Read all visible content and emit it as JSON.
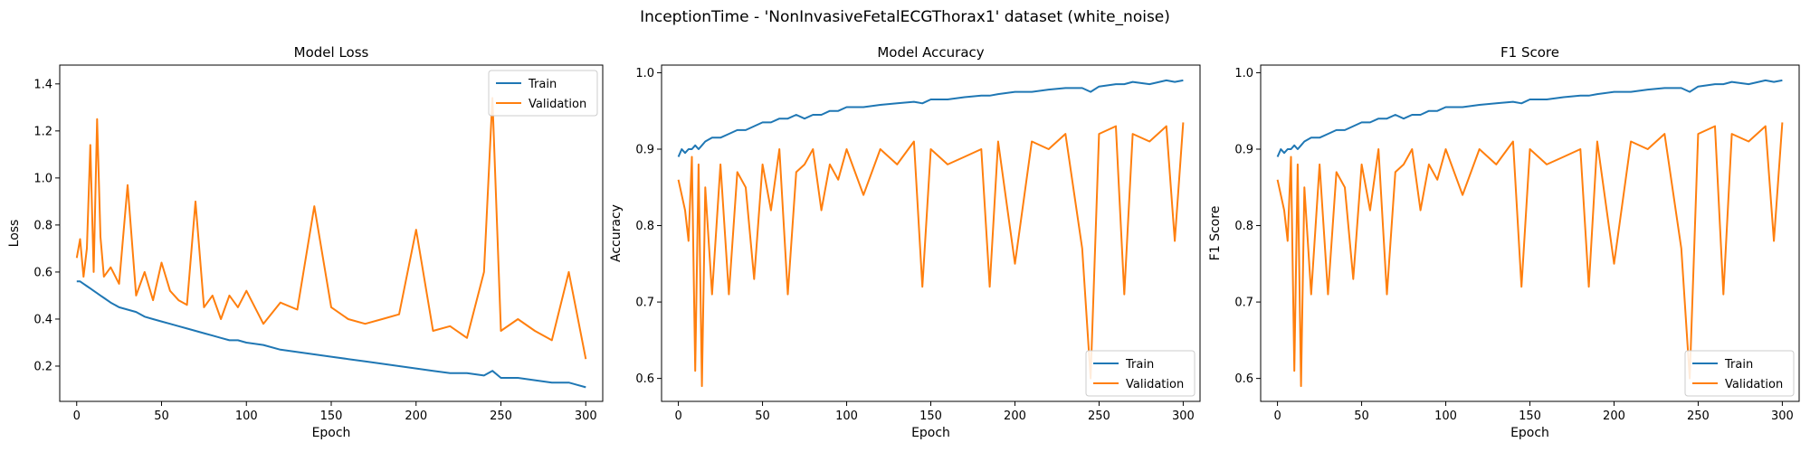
{
  "figure": {
    "suptitle": "InceptionTime - 'NonInvasiveFetalECGThorax1' dataset (white_noise)"
  },
  "colors": {
    "train": "#1f77b4",
    "validation": "#ff7f0e"
  },
  "chart_data": [
    {
      "type": "line",
      "title": "Model Loss",
      "xlabel": "Epoch",
      "ylabel": "Loss",
      "xlim": [
        -10,
        310
      ],
      "ylim": [
        0.05,
        1.48
      ],
      "xticks": [
        0,
        50,
        100,
        150,
        200,
        250,
        300
      ],
      "yticks": [
        0.2,
        0.4,
        0.6,
        0.8,
        1.0,
        1.2,
        1.4
      ],
      "ytick_labels": [
        "0.2",
        "0.4",
        "0.6",
        "0.8",
        "1.0",
        "1.2",
        "1.4"
      ],
      "legend": "upper right",
      "x": [
        0,
        2,
        4,
        6,
        8,
        10,
        12,
        14,
        16,
        20,
        25,
        30,
        35,
        40,
        45,
        50,
        55,
        60,
        65,
        70,
        75,
        80,
        85,
        90,
        95,
        100,
        110,
        120,
        130,
        140,
        150,
        160,
        170,
        180,
        190,
        200,
        210,
        220,
        230,
        240,
        245,
        250,
        260,
        270,
        280,
        290,
        300
      ],
      "series": [
        {
          "name": "Train",
          "values": [
            0.56,
            0.56,
            0.55,
            0.54,
            0.53,
            0.52,
            0.51,
            0.5,
            0.49,
            0.47,
            0.45,
            0.44,
            0.43,
            0.41,
            0.4,
            0.39,
            0.38,
            0.37,
            0.36,
            0.35,
            0.34,
            0.33,
            0.32,
            0.31,
            0.31,
            0.3,
            0.29,
            0.27,
            0.26,
            0.25,
            0.24,
            0.23,
            0.22,
            0.21,
            0.2,
            0.19,
            0.18,
            0.17,
            0.17,
            0.16,
            0.18,
            0.15,
            0.15,
            0.14,
            0.13,
            0.13,
            0.11
          ]
        },
        {
          "name": "Validation",
          "values": [
            0.66,
            0.74,
            0.58,
            0.7,
            1.14,
            0.6,
            1.25,
            0.75,
            0.58,
            0.62,
            0.55,
            0.97,
            0.5,
            0.6,
            0.48,
            0.64,
            0.52,
            0.48,
            0.46,
            0.9,
            0.45,
            0.5,
            0.4,
            0.5,
            0.45,
            0.52,
            0.38,
            0.47,
            0.44,
            0.88,
            0.45,
            0.4,
            0.38,
            0.4,
            0.42,
            0.78,
            0.35,
            0.37,
            0.32,
            0.6,
            1.34,
            0.35,
            0.4,
            0.35,
            0.31,
            0.6,
            0.23
          ]
        }
      ]
    },
    {
      "type": "line",
      "title": "Model Accuracy",
      "xlabel": "Epoch",
      "ylabel": "Accuracy",
      "xlim": [
        -10,
        310
      ],
      "ylim": [
        0.57,
        1.01
      ],
      "xticks": [
        0,
        50,
        100,
        150,
        200,
        250,
        300
      ],
      "yticks": [
        0.6,
        0.7,
        0.8,
        0.9,
        1.0
      ],
      "ytick_labels": [
        "0.6",
        "0.7",
        "0.8",
        "0.9",
        "1.0"
      ],
      "legend": "lower right",
      "x": [
        0,
        2,
        4,
        6,
        8,
        10,
        12,
        14,
        16,
        20,
        25,
        30,
        35,
        40,
        45,
        50,
        55,
        60,
        65,
        70,
        75,
        80,
        85,
        90,
        95,
        100,
        110,
        120,
        130,
        140,
        145,
        150,
        160,
        170,
        180,
        185,
        190,
        200,
        210,
        220,
        230,
        240,
        245,
        250,
        260,
        265,
        270,
        280,
        290,
        295,
        300
      ],
      "series": [
        {
          "name": "Train",
          "values": [
            0.89,
            0.9,
            0.895,
            0.9,
            0.9,
            0.905,
            0.9,
            0.905,
            0.91,
            0.915,
            0.915,
            0.92,
            0.925,
            0.925,
            0.93,
            0.935,
            0.935,
            0.94,
            0.94,
            0.945,
            0.94,
            0.945,
            0.945,
            0.95,
            0.95,
            0.955,
            0.955,
            0.958,
            0.96,
            0.962,
            0.96,
            0.965,
            0.965,
            0.968,
            0.97,
            0.97,
            0.972,
            0.975,
            0.975,
            0.978,
            0.98,
            0.98,
            0.975,
            0.982,
            0.985,
            0.985,
            0.988,
            0.985,
            0.99,
            0.988,
            0.99
          ]
        },
        {
          "name": "Validation",
          "values": [
            0.86,
            0.84,
            0.82,
            0.78,
            0.89,
            0.61,
            0.88,
            0.59,
            0.85,
            0.71,
            0.88,
            0.71,
            0.87,
            0.85,
            0.73,
            0.88,
            0.82,
            0.9,
            0.71,
            0.87,
            0.88,
            0.9,
            0.82,
            0.88,
            0.86,
            0.9,
            0.84,
            0.9,
            0.88,
            0.91,
            0.72,
            0.9,
            0.88,
            0.89,
            0.9,
            0.72,
            0.91,
            0.75,
            0.91,
            0.9,
            0.92,
            0.77,
            0.6,
            0.92,
            0.93,
            0.71,
            0.92,
            0.91,
            0.93,
            0.78,
            0.935
          ]
        }
      ]
    },
    {
      "type": "line",
      "title": "F1 Score",
      "xlabel": "Epoch",
      "ylabel": "F1 Score",
      "xlim": [
        -10,
        310
      ],
      "ylim": [
        0.57,
        1.01
      ],
      "xticks": [
        0,
        50,
        100,
        150,
        200,
        250,
        300
      ],
      "yticks": [
        0.6,
        0.7,
        0.8,
        0.9,
        1.0
      ],
      "ytick_labels": [
        "0.6",
        "0.7",
        "0.8",
        "0.9",
        "1.0"
      ],
      "legend": "lower right",
      "x": [
        0,
        2,
        4,
        6,
        8,
        10,
        12,
        14,
        16,
        20,
        25,
        30,
        35,
        40,
        45,
        50,
        55,
        60,
        65,
        70,
        75,
        80,
        85,
        90,
        95,
        100,
        110,
        120,
        130,
        140,
        145,
        150,
        160,
        170,
        180,
        185,
        190,
        200,
        210,
        220,
        230,
        240,
        245,
        250,
        260,
        265,
        270,
        280,
        290,
        295,
        300
      ],
      "series": [
        {
          "name": "Train",
          "values": [
            0.89,
            0.9,
            0.895,
            0.9,
            0.9,
            0.905,
            0.9,
            0.905,
            0.91,
            0.915,
            0.915,
            0.92,
            0.925,
            0.925,
            0.93,
            0.935,
            0.935,
            0.94,
            0.94,
            0.945,
            0.94,
            0.945,
            0.945,
            0.95,
            0.95,
            0.955,
            0.955,
            0.958,
            0.96,
            0.962,
            0.96,
            0.965,
            0.965,
            0.968,
            0.97,
            0.97,
            0.972,
            0.975,
            0.975,
            0.978,
            0.98,
            0.98,
            0.975,
            0.982,
            0.985,
            0.985,
            0.988,
            0.985,
            0.99,
            0.988,
            0.99
          ]
        },
        {
          "name": "Validation",
          "values": [
            0.86,
            0.84,
            0.82,
            0.78,
            0.89,
            0.61,
            0.88,
            0.59,
            0.85,
            0.71,
            0.88,
            0.71,
            0.87,
            0.85,
            0.73,
            0.88,
            0.82,
            0.9,
            0.71,
            0.87,
            0.88,
            0.9,
            0.82,
            0.88,
            0.86,
            0.9,
            0.84,
            0.9,
            0.88,
            0.91,
            0.72,
            0.9,
            0.88,
            0.89,
            0.9,
            0.72,
            0.91,
            0.75,
            0.91,
            0.9,
            0.92,
            0.77,
            0.6,
            0.92,
            0.93,
            0.71,
            0.92,
            0.91,
            0.93,
            0.78,
            0.935
          ]
        }
      ]
    }
  ]
}
